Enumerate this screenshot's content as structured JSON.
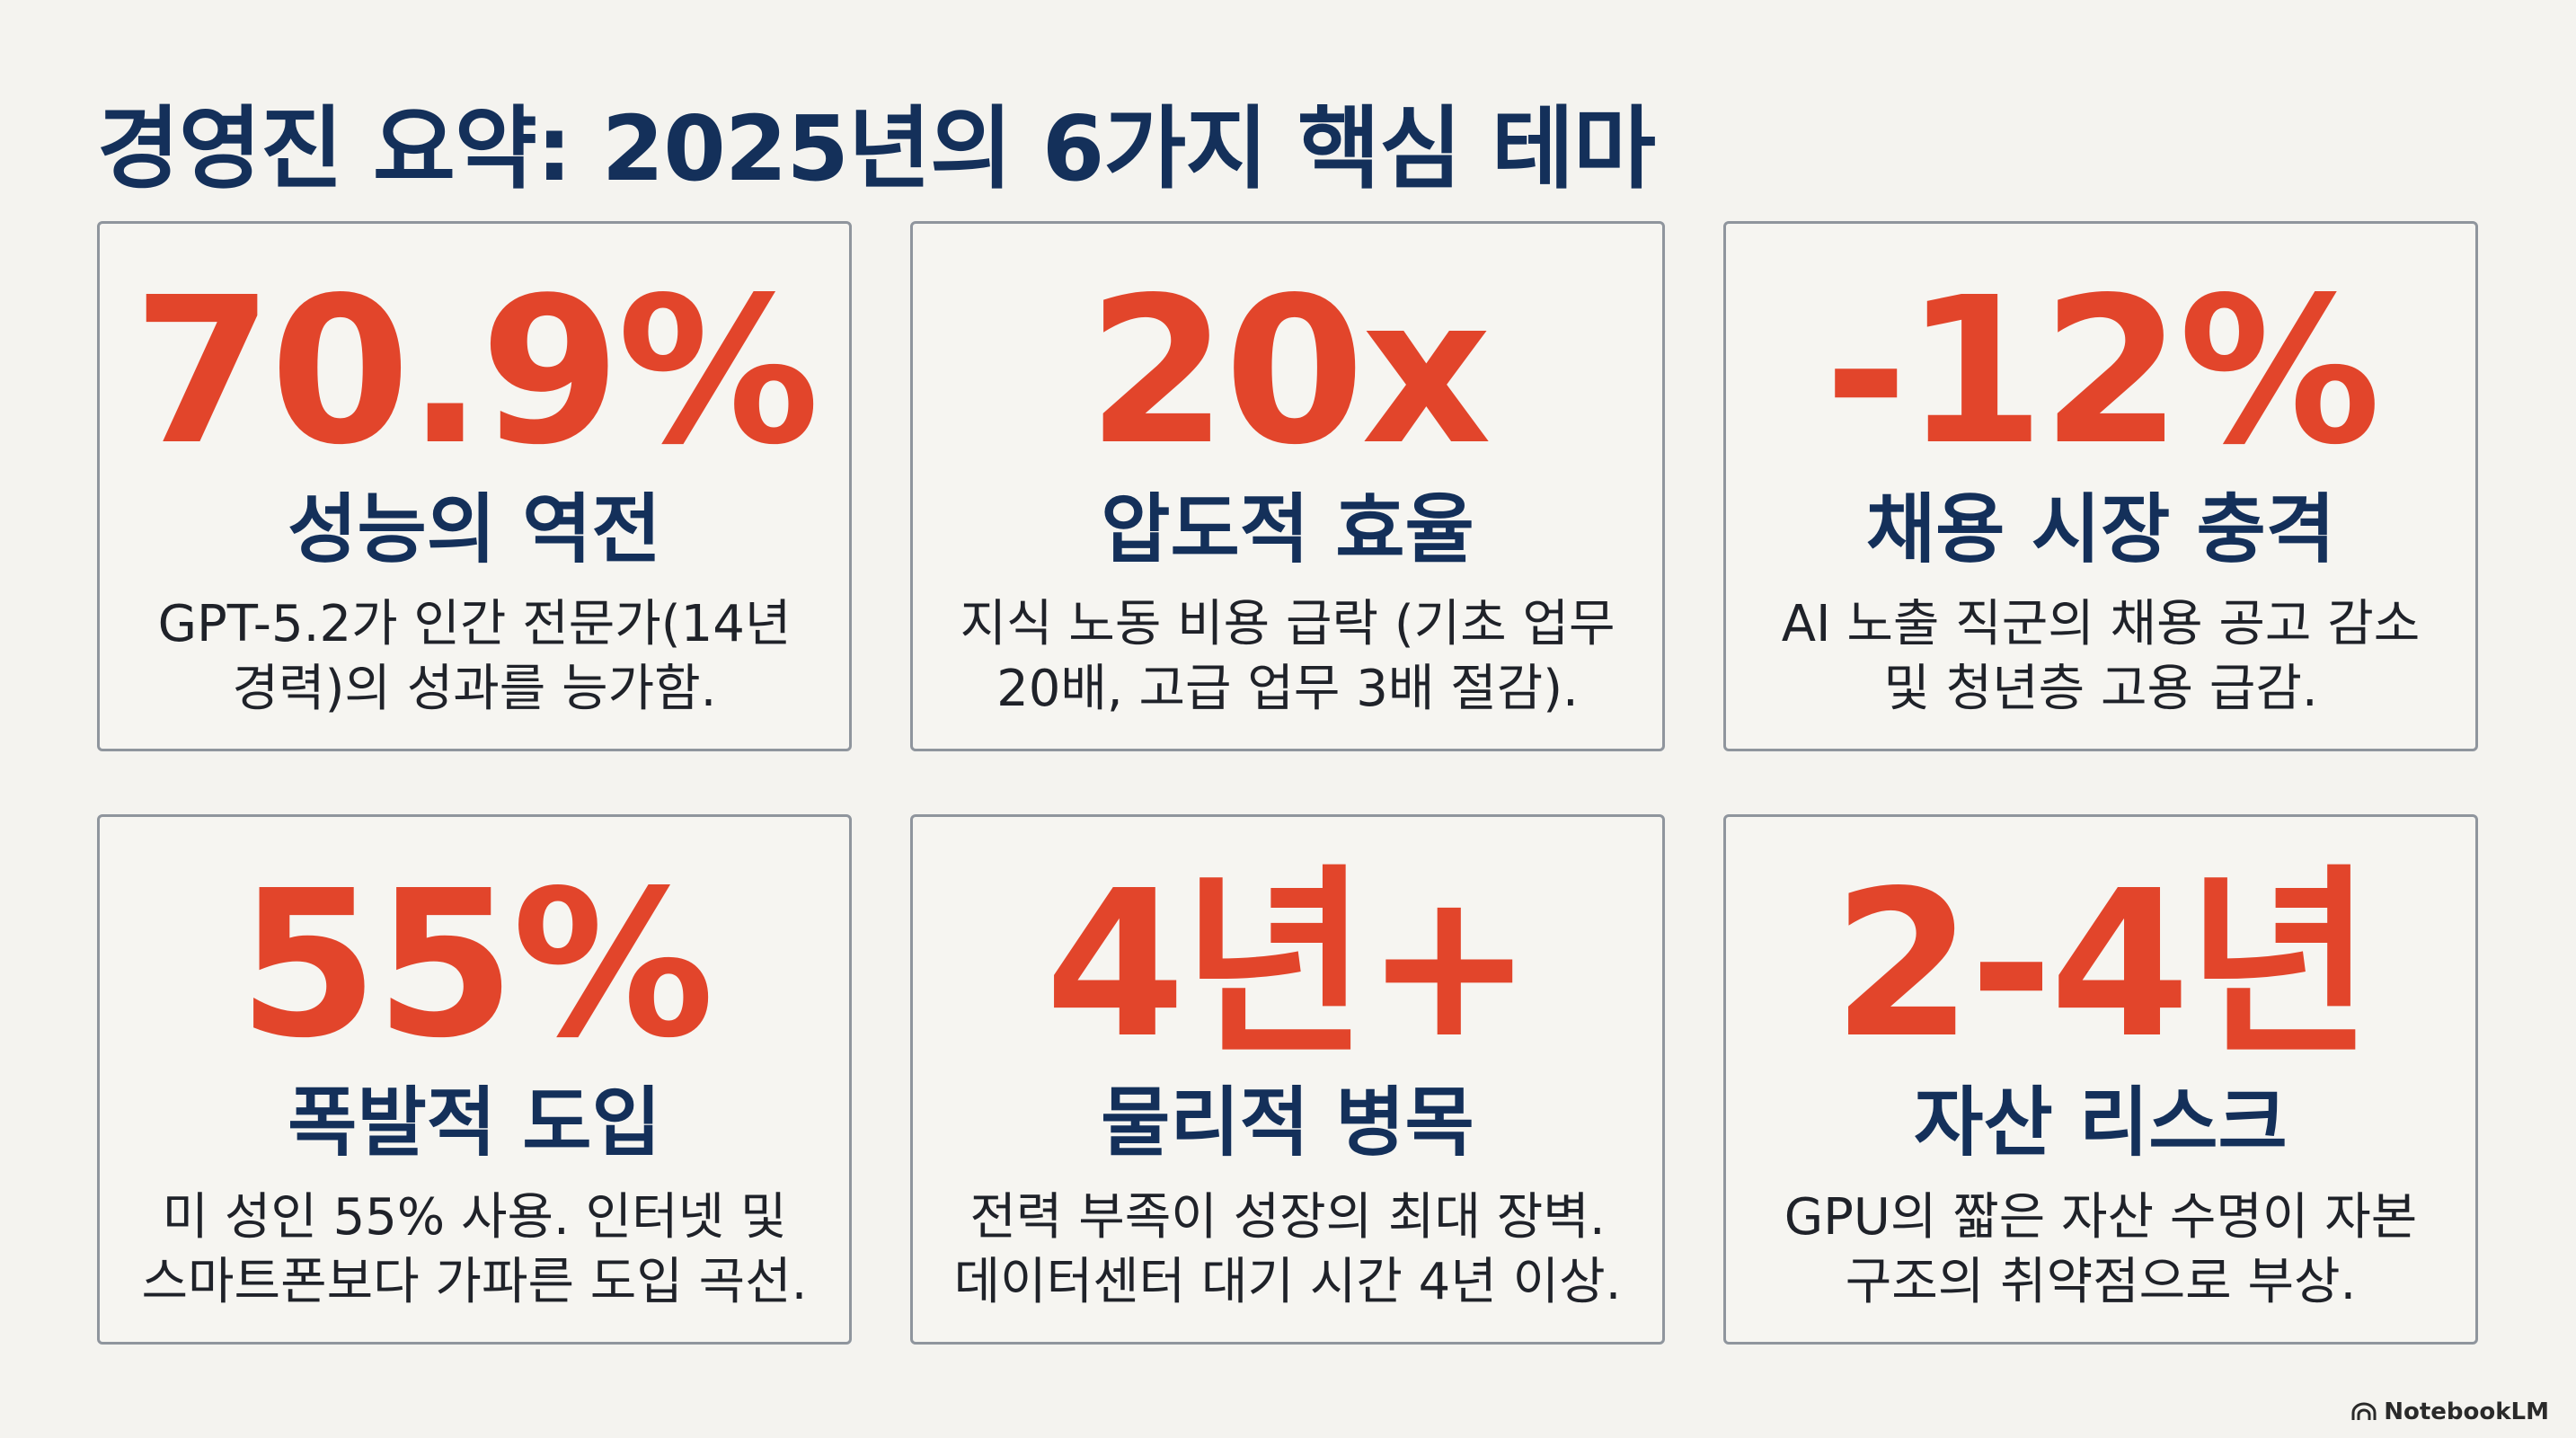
{
  "title": "경영진 요약: 2025년의 6가지 핵심 테마",
  "cards": [
    {
      "stat": "70.9%",
      "heading": "성능의 역전",
      "line1": "GPT-5.2가 인간 전문가(14년",
      "line2": "경력)의 성과를 능가함."
    },
    {
      "stat": "20x",
      "heading": "압도적 효율",
      "line1": "지식 노동 비용 급락 (기초 업무",
      "line2": "20배, 고급 업무 3배 절감)."
    },
    {
      "stat": "-12%",
      "heading": "채용 시장 충격",
      "line1": "AI 노출 직군의 채용 공고 감소",
      "line2": "및 청년층 고용 급감."
    },
    {
      "stat": "55%",
      "heading": "폭발적 도입",
      "line1": "미 성인 55% 사용. 인터넷 및",
      "line2": "스마트폰보다 가파른 도입 곡선."
    },
    {
      "stat": "4년+",
      "heading": "물리적 병목",
      "line1": "전력 부족이 성장의 최대 장벽.",
      "line2": "데이터센터 대기 시간 4년 이상."
    },
    {
      "stat": "2-4년",
      "heading": "자산 리스크",
      "line1": "GPU의 짧은 자산 수명이 자본",
      "line2": "구조의 취약점으로 부상."
    }
  ],
  "brand": {
    "label": "NotebookLM",
    "icon": "notebooklm-logo-icon"
  },
  "colors": {
    "stat": "#e2452b",
    "heading": "#14305a",
    "text": "#1f2229",
    "border": "#8f959d",
    "background": "#f4f3ef"
  }
}
